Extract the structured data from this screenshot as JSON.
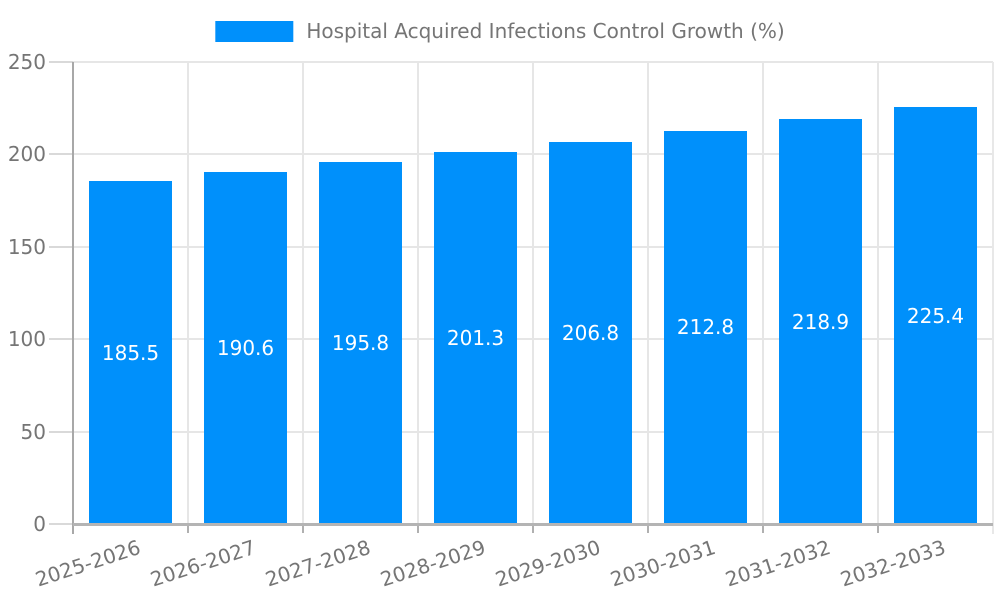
{
  "legend": {
    "label": "Hospital Acquired Infections Control Growth (%)"
  },
  "chart_data": {
    "type": "bar",
    "title": "Hospital Acquired Infections Control Growth (%)",
    "categories": [
      "2025-2026",
      "2026-2027",
      "2027-2028",
      "2028-2029",
      "2029-2030",
      "2030-2031",
      "2031-2032",
      "2032-2033"
    ],
    "values": [
      185.5,
      190.6,
      195.8,
      201.3,
      206.8,
      212.8,
      218.9,
      225.4
    ],
    "value_labels": [
      "185.5",
      "190.6",
      "195.8",
      "201.3",
      "206.8",
      "212.8",
      "218.9",
      "225.4"
    ],
    "xlabel": "",
    "ylabel": "",
    "ylim": [
      0,
      250
    ],
    "yticks": [
      0,
      50,
      100,
      150,
      200,
      250
    ],
    "grid": true,
    "legend_position": "top"
  },
  "colors": {
    "bar_fill": "#0090FB",
    "gridline": "#e6e6e6",
    "axis_line": "#a8a8a8",
    "baseline": "#b4b4b4",
    "right_border": "#e8e8e8",
    "tick": "#d9d9d9",
    "x_tick": "#b0b0b0",
    "label_text": "#757575",
    "value_text": "#ffffff"
  }
}
